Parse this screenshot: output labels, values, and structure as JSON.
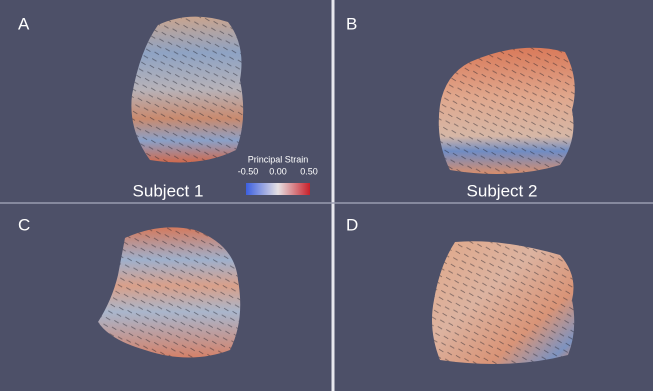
{
  "panels": [
    {
      "label": "A"
    },
    {
      "label": "B"
    },
    {
      "label": "C"
    },
    {
      "label": "D"
    }
  ],
  "subjects": [
    "Subject 1",
    "Subject 2"
  ],
  "colorbar": {
    "title": "Principal Strain",
    "ticks": [
      "-0.50",
      "0.00",
      "0.50"
    ]
  }
}
